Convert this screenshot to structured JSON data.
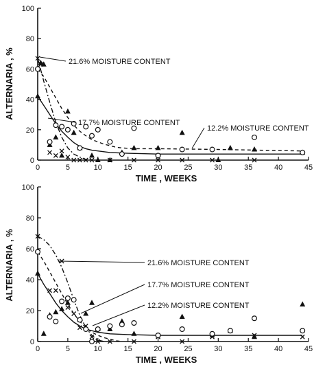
{
  "chart_data": [
    {
      "type": "scatter",
      "xlabel": "TIME , WEEKS",
      "ylabel": "ALTERNARIA , %",
      "xlim": [
        0,
        45
      ],
      "ylim": [
        0,
        100
      ],
      "x_ticks": [
        "0",
        "5",
        "10",
        "15",
        "20",
        "25",
        "30",
        "35",
        "40",
        "45"
      ],
      "y_ticks": [
        "0",
        "20",
        "40",
        "60",
        "80",
        "100"
      ],
      "annotations": [
        {
          "text": "21.6% MOISTURE CONTENT",
          "series": "x"
        },
        {
          "text": "17.7% MOISTURE CONTENT",
          "series": "triangle"
        },
        {
          "text": "12.2% MOISTURE CONTENT",
          "series": "circle"
        }
      ],
      "series": [
        {
          "marker": "x",
          "points": [
            [
              0,
              67
            ],
            [
              0.5,
              63
            ],
            [
              2,
              5
            ],
            [
              3,
              3
            ],
            [
              4,
              6
            ],
            [
              5,
              2
            ],
            [
              6,
              0
            ],
            [
              7,
              0
            ],
            [
              8,
              0
            ],
            [
              9,
              0
            ],
            [
              12,
              0
            ],
            [
              16,
              0
            ],
            [
              20,
              0
            ],
            [
              24,
              0
            ],
            [
              29,
              0
            ],
            [
              36,
              0
            ]
          ],
          "curve": [
            [
              0,
              67
            ],
            [
              1,
              52
            ],
            [
              2,
              38
            ],
            [
              3,
              25
            ],
            [
              4,
              15
            ],
            [
              5,
              8
            ],
            [
              6,
              4
            ],
            [
              7,
              2
            ],
            [
              8,
              0.5
            ],
            [
              9,
              0
            ]
          ]
        },
        {
          "marker": "triangle",
          "points": [
            [
              0,
              42
            ],
            [
              0.5,
              64
            ],
            [
              1,
              63
            ],
            [
              2,
              10
            ],
            [
              3,
              15
            ],
            [
              4,
              3
            ],
            [
              5,
              32
            ],
            [
              6,
              18
            ],
            [
              7,
              8
            ],
            [
              9,
              3
            ],
            [
              10,
              0
            ],
            [
              12,
              0
            ],
            [
              14,
              5
            ],
            [
              16,
              8
            ],
            [
              20,
              8
            ],
            [
              24,
              18
            ],
            [
              30,
              0
            ],
            [
              32,
              8
            ],
            [
              36,
              7
            ],
            [
              44,
              5
            ]
          ],
          "curve": [
            [
              0,
              42
            ],
            [
              1,
              36
            ],
            [
              2,
              30
            ],
            [
              3,
              24
            ],
            [
              4,
              19
            ],
            [
              5,
              15
            ],
            [
              6,
              11.5
            ],
            [
              7,
              9
            ],
            [
              8,
              7.5
            ],
            [
              9,
              6.5
            ],
            [
              10,
              6
            ],
            [
              12,
              5
            ],
            [
              15,
              4.5
            ],
            [
              20,
              4
            ],
            [
              30,
              4
            ],
            [
              44,
              4
            ]
          ]
        },
        {
          "marker": "circle",
          "points": [
            [
              0,
              60
            ],
            [
              2,
              12
            ],
            [
              3,
              23
            ],
            [
              4,
              22
            ],
            [
              5,
              20
            ],
            [
              6,
              24
            ],
            [
              7,
              8
            ],
            [
              8,
              22
            ],
            [
              9,
              16
            ],
            [
              10,
              20
            ],
            [
              12,
              12
            ],
            [
              14,
              4
            ],
            [
              16,
              21
            ],
            [
              20,
              3
            ],
            [
              24,
              7
            ],
            [
              29,
              7
            ],
            [
              36,
              15
            ],
            [
              44,
              5
            ]
          ],
          "curve": [
            [
              0,
              60
            ],
            [
              1,
              55
            ],
            [
              2,
              48
            ],
            [
              3,
              41
            ],
            [
              4,
              34
            ],
            [
              5,
              28
            ],
            [
              6,
              23
            ],
            [
              7,
              19
            ],
            [
              8,
              16
            ],
            [
              9,
              13.5
            ],
            [
              10,
              12
            ],
            [
              11,
              10.5
            ],
            [
              12,
              9.5
            ],
            [
              13,
              8.5
            ],
            [
              14,
              8
            ],
            [
              16,
              7.5
            ],
            [
              20,
              7.5
            ],
            [
              30,
              7
            ],
            [
              44,
              6
            ]
          ]
        }
      ]
    },
    {
      "type": "scatter",
      "xlabel": "TIME , WEEKS",
      "ylabel": "ALTERNARIA , %",
      "xlim": [
        0,
        45
      ],
      "ylim": [
        0,
        100
      ],
      "x_ticks": [
        "0",
        "5",
        "10",
        "15",
        "20",
        "25",
        "30",
        "35",
        "40",
        "45"
      ],
      "y_ticks": [
        "0",
        "20",
        "40",
        "60",
        "80",
        "100"
      ],
      "annotations": [
        {
          "text": "21.6% MOISTURE CONTENT",
          "series": "x"
        },
        {
          "text": "17.7% MOISTURE CONTENT",
          "series": "triangle"
        },
        {
          "text": "12.2% MOISTURE CONTENT",
          "series": "circle"
        }
      ],
      "series": [
        {
          "marker": "x",
          "points": [
            [
              0,
              68
            ],
            [
              2,
              33
            ],
            [
              3,
              33
            ],
            [
              4,
              52
            ],
            [
              5,
              22
            ],
            [
              6,
              18
            ],
            [
              7,
              9
            ],
            [
              8,
              10
            ],
            [
              9,
              3
            ],
            [
              10,
              0
            ],
            [
              12,
              0
            ],
            [
              16,
              0
            ],
            [
              20,
              3
            ],
            [
              24,
              0
            ],
            [
              29,
              3
            ],
            [
              36,
              4
            ],
            [
              44,
              3
            ]
          ],
          "curve": [
            [
              0,
              68
            ],
            [
              1,
              66
            ],
            [
              2,
              62
            ],
            [
              3,
              56
            ],
            [
              4,
              48
            ],
            [
              5,
              38
            ],
            [
              6,
              27
            ],
            [
              7,
              17
            ],
            [
              8,
              9
            ],
            [
              9,
              4
            ],
            [
              10,
              1
            ],
            [
              11,
              0
            ]
          ]
        },
        {
          "marker": "triangle",
          "points": [
            [
              0,
              44
            ],
            [
              1,
              5
            ],
            [
              2,
              17
            ],
            [
              3,
              19
            ],
            [
              4,
              21
            ],
            [
              5,
              25
            ],
            [
              7,
              14
            ],
            [
              8,
              18
            ],
            [
              9,
              25
            ],
            [
              10,
              8
            ],
            [
              12,
              8
            ],
            [
              14,
              13
            ],
            [
              16,
              5
            ],
            [
              20,
              4
            ],
            [
              24,
              16
            ],
            [
              29,
              4
            ],
            [
              32,
              7
            ],
            [
              36,
              3
            ],
            [
              44,
              24
            ]
          ],
          "curve": [
            [
              0,
              44
            ],
            [
              1,
              37
            ],
            [
              2,
              31
            ],
            [
              3,
              25
            ],
            [
              4,
              20
            ],
            [
              5,
              16
            ],
            [
              6,
              12.5
            ],
            [
              7,
              10
            ],
            [
              8,
              8
            ],
            [
              10,
              6
            ],
            [
              12,
              5
            ],
            [
              15,
              4.5
            ],
            [
              20,
              4
            ],
            [
              44,
              4
            ]
          ]
        },
        {
          "marker": "circle",
          "points": [
            [
              0,
              58
            ],
            [
              2,
              16
            ],
            [
              3,
              13
            ],
            [
              4,
              26
            ],
            [
              5,
              28
            ],
            [
              6,
              27
            ],
            [
              7,
              14
            ],
            [
              8,
              8
            ],
            [
              9,
              0
            ],
            [
              10,
              8
            ],
            [
              12,
              10
            ],
            [
              14,
              11
            ],
            [
              16,
              12
            ],
            [
              20,
              4
            ],
            [
              24,
              8
            ],
            [
              29,
              5
            ],
            [
              32,
              7
            ],
            [
              36,
              15
            ],
            [
              44,
              7
            ]
          ],
          "curve": [
            [
              0,
              58
            ],
            [
              1,
              52
            ],
            [
              2,
              45
            ],
            [
              3,
              38
            ],
            [
              4,
              31
            ],
            [
              5,
              24
            ],
            [
              6,
              18
            ],
            [
              7,
              13
            ],
            [
              8,
              9
            ],
            [
              9,
              6
            ],
            [
              10,
              4
            ],
            [
              11,
              2.5
            ],
            [
              12,
              1.5
            ],
            [
              13,
              0.5
            ],
            [
              14,
              0
            ]
          ]
        }
      ]
    }
  ]
}
